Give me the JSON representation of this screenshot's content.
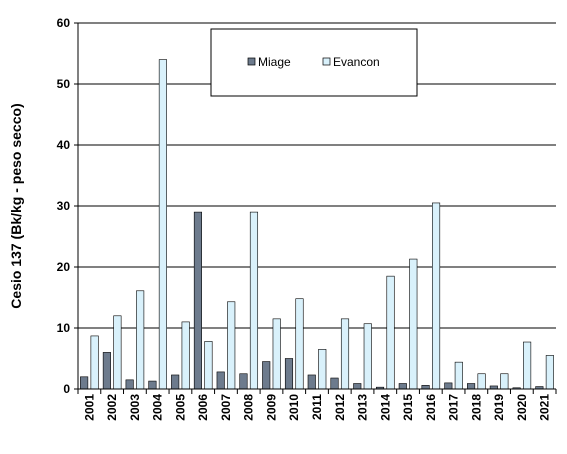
{
  "chart_data": {
    "type": "bar",
    "title": "",
    "xlabel": "",
    "ylabel": "Cesio 137 (Bk/kg - peso secco)",
    "ylim": [
      0,
      60
    ],
    "yticks": [
      0,
      10,
      20,
      30,
      40,
      50,
      60
    ],
    "grid": "horizontal",
    "legend_position": "top-center",
    "categories": [
      "2001",
      "2002",
      "2003",
      "2004",
      "2005",
      "2006",
      "2007",
      "2008",
      "2009",
      "2010",
      "2011",
      "2012",
      "2013",
      "2014",
      "2015",
      "2016",
      "2017",
      "2018",
      "2019",
      "2020",
      "2021"
    ],
    "series": [
      {
        "name": "Miage",
        "color": "#6d7b8d",
        "values": [
          2.0,
          6.0,
          1.5,
          1.3,
          2.3,
          29.0,
          2.8,
          2.5,
          4.5,
          5.0,
          2.3,
          1.8,
          0.9,
          0.3,
          0.9,
          0.6,
          1.0,
          0.9,
          0.5,
          0.2,
          0.4
        ]
      },
      {
        "name": "Evancon",
        "color": "#d9f1fb",
        "values": [
          8.7,
          12.0,
          16.1,
          54.0,
          11.0,
          7.8,
          14.3,
          29.0,
          11.5,
          14.8,
          6.5,
          11.5,
          10.7,
          18.5,
          21.3,
          30.5,
          4.4,
          2.5,
          2.5,
          7.7,
          5.5
        ]
      }
    ]
  }
}
